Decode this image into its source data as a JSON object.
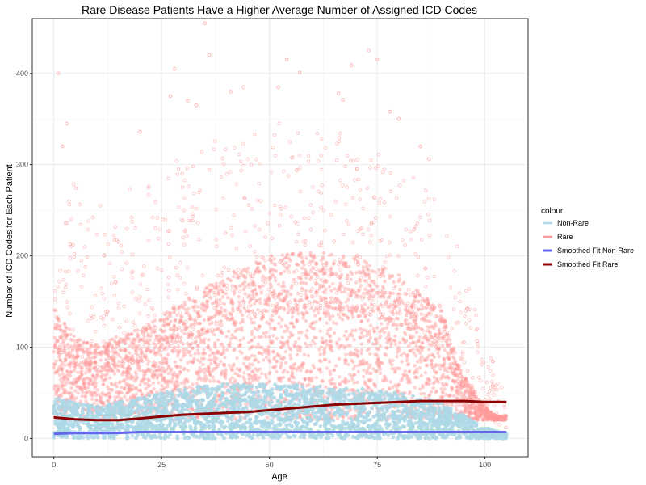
{
  "chart_data": {
    "type": "scatter",
    "title": "Rare Disease Patients Have a Higher Average Number of Assigned ICD Codes",
    "xlabel": "Age",
    "ylabel": "Number of ICD Codes for Each Patient",
    "xlim": [
      -5,
      110
    ],
    "ylim": [
      -20,
      460
    ],
    "x_ticks": [
      0,
      25,
      50,
      75,
      100
    ],
    "y_ticks": [
      0,
      100,
      200,
      300,
      400
    ],
    "grid": true,
    "legend_position": "right",
    "legend_title": "colour",
    "legend": [
      {
        "label": "Non-Rare",
        "color": "#add8e6",
        "kind": "points"
      },
      {
        "label": "Rare",
        "color": "#ff9999",
        "kind": "points"
      },
      {
        "label": "Smoothed Fit Non-Rare",
        "color": "#6666ee",
        "kind": "line"
      },
      {
        "label": "Smoothed Fit Rare",
        "color": "#8b0000",
        "kind": "line"
      }
    ],
    "series": [
      {
        "name": "Rare",
        "kind": "scatter-cloud",
        "color": "#ff9999",
        "x_range": [
          0,
          105
        ],
        "band_upper": [
          [
            0,
            145
          ],
          [
            5,
            110
          ],
          [
            10,
            105
          ],
          [
            20,
            120
          ],
          [
            30,
            150
          ],
          [
            40,
            180
          ],
          [
            50,
            200
          ],
          [
            60,
            205
          ],
          [
            70,
            200
          ],
          [
            80,
            180
          ],
          [
            90,
            140
          ],
          [
            95,
            70
          ],
          [
            100,
            35
          ],
          [
            105,
            15
          ]
        ],
        "sparse_upper": [
          [
            0,
            300
          ],
          [
            10,
            260
          ],
          [
            20,
            280
          ],
          [
            30,
            310
          ],
          [
            40,
            340
          ],
          [
            50,
            350
          ],
          [
            60,
            345
          ],
          [
            70,
            330
          ],
          [
            80,
            300
          ],
          [
            90,
            260
          ],
          [
            95,
            190
          ],
          [
            100,
            120
          ],
          [
            105,
            40
          ]
        ],
        "outliers": [
          {
            "x": 35,
            "y": 455
          },
          {
            "x": 36,
            "y": 420
          },
          {
            "x": 1,
            "y": 400
          },
          {
            "x": 28,
            "y": 405
          },
          {
            "x": 57,
            "y": 401
          },
          {
            "x": 73,
            "y": 425
          },
          {
            "x": 54,
            "y": 415
          },
          {
            "x": 69,
            "y": 409
          },
          {
            "x": 52,
            "y": 385
          },
          {
            "x": 44,
            "y": 385
          },
          {
            "x": 27,
            "y": 375
          },
          {
            "x": 41,
            "y": 380
          },
          {
            "x": 66,
            "y": 378
          },
          {
            "x": 67,
            "y": 371
          },
          {
            "x": 31,
            "y": 370
          },
          {
            "x": 20,
            "y": 336
          },
          {
            "x": 3,
            "y": 345
          },
          {
            "x": 78,
            "y": 358
          },
          {
            "x": 80,
            "y": 350
          },
          {
            "x": 87,
            "y": 306
          },
          {
            "x": 2,
            "y": 320
          },
          {
            "x": 33,
            "y": 365
          },
          {
            "x": 75,
            "y": 415
          },
          {
            "x": 85,
            "y": 320
          }
        ]
      },
      {
        "name": "Non-Rare",
        "kind": "scatter-cloud",
        "color": "#add8e6",
        "x_range": [
          0,
          105
        ],
        "band_upper": [
          [
            0,
            45
          ],
          [
            10,
            35
          ],
          [
            20,
            45
          ],
          [
            30,
            55
          ],
          [
            40,
            60
          ],
          [
            50,
            60
          ],
          [
            60,
            58
          ],
          [
            70,
            55
          ],
          [
            80,
            50
          ],
          [
            90,
            40
          ],
          [
            95,
            25
          ],
          [
            100,
            12
          ],
          [
            105,
            5
          ]
        ]
      },
      {
        "name": "Smoothed Fit Non-Rare",
        "kind": "line",
        "color": "#6666ee",
        "x": [
          0,
          5,
          10,
          15,
          20,
          30,
          40,
          50,
          60,
          70,
          80,
          90,
          100,
          105
        ],
        "y": [
          5,
          6,
          6,
          6,
          7,
          7,
          7,
          7,
          7,
          7,
          7,
          7,
          7,
          7
        ]
      },
      {
        "name": "Smoothed Fit Rare",
        "kind": "line",
        "color": "#8b0000",
        "x": [
          0,
          5,
          10,
          15,
          20,
          25,
          30,
          35,
          40,
          45,
          50,
          55,
          60,
          65,
          70,
          75,
          80,
          85,
          90,
          95,
          100,
          105
        ],
        "y": [
          23,
          21,
          20,
          20,
          22,
          24,
          26,
          27,
          28,
          29,
          31,
          33,
          35,
          37,
          38,
          39,
          40,
          41,
          41,
          41,
          40,
          40
        ]
      }
    ]
  }
}
